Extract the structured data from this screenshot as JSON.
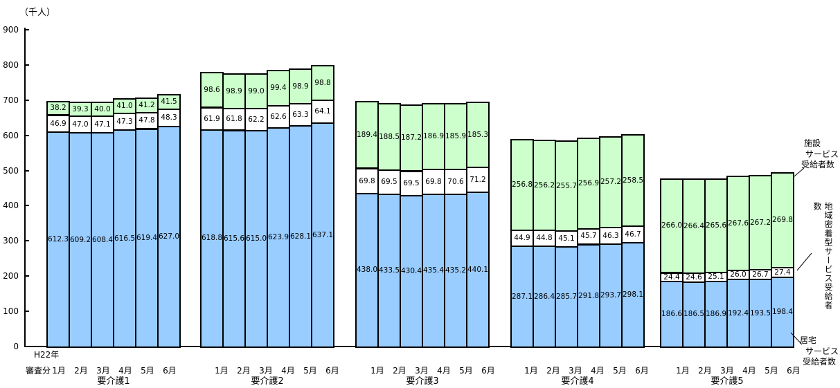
{
  "chart_data": {
    "type": "bar",
    "stacked": true,
    "ylabel_unit": "（千人）",
    "ylim": [
      0,
      900
    ],
    "yticks": [
      0,
      100,
      200,
      300,
      400,
      500,
      600,
      700,
      800,
      900
    ],
    "grid": false,
    "legend_position": "right",
    "x_note_line1": "H22年",
    "x_note_line2": "審査分",
    "months": [
      "1月",
      "2月",
      "3月",
      "4月",
      "5月",
      "6月"
    ],
    "series_order": [
      "kyotaku",
      "chiiki",
      "shisetsu"
    ],
    "series_meta": {
      "kyotaku": {
        "name": "居宅サービス受給者数",
        "color": "#99CCFF",
        "legend_lines": [
          "居宅",
          "サービス",
          "受給者数"
        ]
      },
      "chiiki": {
        "name": "地域密着型サービス受給者数",
        "color": "#FFFFFF",
        "legend_vertical_text": "地域密着型サービス受給者数"
      },
      "shisetsu": {
        "name": "施設サービス受給者数",
        "color": "#CCFFCC",
        "legend_lines": [
          "施設",
          "サービス",
          "受給者数"
        ]
      }
    },
    "border_color": "#000000",
    "groups": [
      {
        "label": "要介護1",
        "values": {
          "kyotaku": [
            612.3,
            609.2,
            608.4,
            616.5,
            619.4,
            627.0
          ],
          "chiiki": [
            46.9,
            47.0,
            47.1,
            47.3,
            47.8,
            48.3
          ],
          "shisetsu": [
            38.2,
            39.3,
            40.0,
            41.0,
            41.2,
            41.5
          ]
        }
      },
      {
        "label": "要介護2",
        "values": {
          "kyotaku": [
            618.8,
            615.6,
            615.0,
            623.9,
            628.1,
            637.1
          ],
          "chiiki": [
            61.9,
            61.8,
            62.2,
            62.6,
            63.3,
            64.1
          ],
          "shisetsu": [
            98.6,
            98.9,
            99.0,
            99.4,
            98.9,
            98.8
          ]
        }
      },
      {
        "label": "要介護3",
        "values": {
          "kyotaku": [
            438.0,
            433.5,
            430.4,
            435.4,
            435.2,
            440.1
          ],
          "chiiki": [
            69.8,
            69.5,
            69.5,
            69.8,
            70.6,
            71.2
          ],
          "shisetsu": [
            189.4,
            188.5,
            187.2,
            186.9,
            185.9,
            185.3
          ]
        }
      },
      {
        "label": "要介護4",
        "values": {
          "kyotaku": [
            287.1,
            286.4,
            285.7,
            291.8,
            293.7,
            298.1
          ],
          "chiiki": [
            44.9,
            44.8,
            45.1,
            45.7,
            46.3,
            46.7
          ],
          "shisetsu": [
            256.8,
            256.2,
            255.7,
            256.9,
            257.2,
            258.5
          ]
        }
      },
      {
        "label": "要介護5",
        "values": {
          "kyotaku": [
            186.6,
            186.5,
            186.9,
            192.4,
            193.5,
            198.4
          ],
          "chiiki": [
            24.4,
            24.6,
            25.1,
            26.0,
            26.7,
            27.4
          ],
          "shisetsu": [
            266.0,
            266.4,
            265.6,
            267.6,
            267.2,
            269.8
          ]
        }
      }
    ]
  }
}
